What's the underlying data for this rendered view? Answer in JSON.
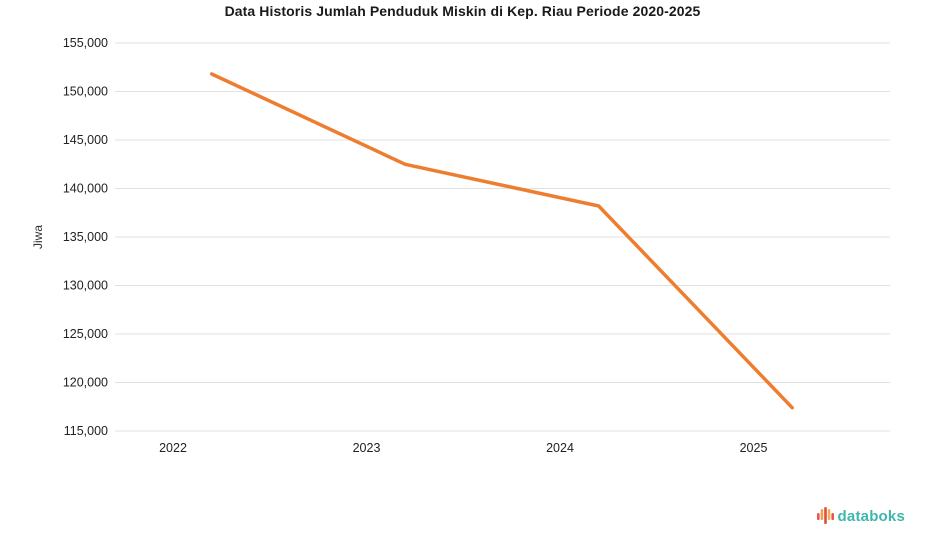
{
  "chart_data": {
    "type": "line",
    "title": "Data Historis Jumlah Penduduk Miskin di Kep. Riau Periode 2020-2025",
    "ylabel": "Jiwa",
    "xlabel": "",
    "categories": [
      "2022",
      "2023",
      "2024",
      "2025"
    ],
    "x_plot": [
      2022.2,
      2023.2,
      2024.2,
      2025.2
    ],
    "values": [
      151800,
      142500,
      138200,
      117400
    ],
    "ylim": [
      115000,
      155000
    ],
    "ytick_step": 5000,
    "ytick_labels": [
      "115,000",
      "120,000",
      "125,000",
      "130,000",
      "135,000",
      "140,000",
      "145,000",
      "150,000",
      "155,000"
    ],
    "yticks": [
      115000,
      120000,
      125000,
      130000,
      135000,
      140000,
      145000,
      150000,
      155000
    ],
    "grid": "horizontal",
    "legend": "none"
  },
  "branding": {
    "logo_text": "databoks"
  },
  "colors": {
    "line": "#ef7d30",
    "grid": "#e0e0e0",
    "title_text": "#1a1a1a",
    "tick_text": "#222222",
    "logo_teal": "#3cb6ae",
    "logo_red": "#e2574c",
    "logo_orange": "#f5a04c"
  }
}
